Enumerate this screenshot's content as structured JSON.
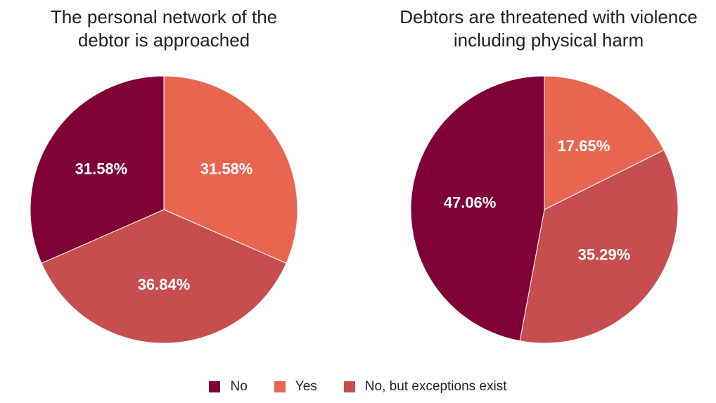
{
  "colors": {
    "No": "#7f0037",
    "Yes": "#e8664f",
    "No, but exceptions exist": "#c84d4e"
  },
  "chart_data": [
    {
      "type": "pie",
      "title": "The personal network of the\ndebtor is approached",
      "slices": [
        {
          "label": "Yes",
          "value": 31.58,
          "display": "31.58%"
        },
        {
          "label": "No, but exceptions exist",
          "value": 36.84,
          "display": "36.84%"
        },
        {
          "label": "No",
          "value": 31.58,
          "display": "31.58%"
        }
      ],
      "legend_position": "bottom"
    },
    {
      "type": "pie",
      "title": "Debtors are threatened with violence\nincluding physical harm",
      "slices": [
        {
          "label": "Yes",
          "value": 17.65,
          "display": "17.65%"
        },
        {
          "label": "No, but exceptions exist",
          "value": 35.29,
          "display": "35.29%"
        },
        {
          "label": "No",
          "value": 47.06,
          "display": "47.06%"
        }
      ],
      "legend_position": "bottom"
    }
  ],
  "legend": [
    {
      "label": "No"
    },
    {
      "label": "Yes"
    },
    {
      "label": "No, but exceptions exist"
    }
  ]
}
